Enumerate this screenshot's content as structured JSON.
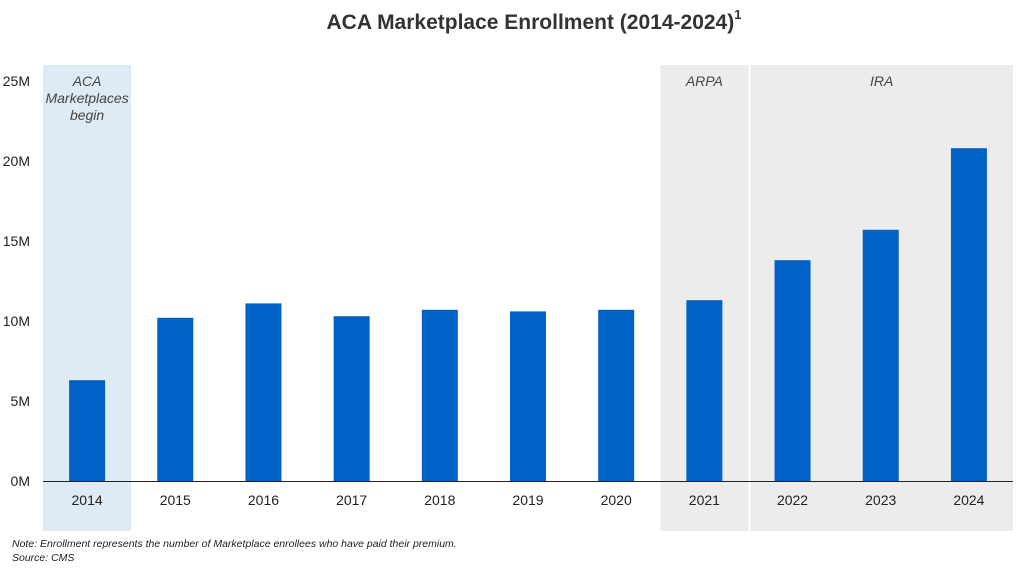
{
  "title": {
    "text": "ACA Marketplace Enrollment (2014-2024)",
    "footnote_marker": "1"
  },
  "notes": {
    "note": "Note: Enrollment represents the number of Marketplace enrollees who have paid their premium.",
    "source": "Source: CMS"
  },
  "colors": {
    "bar": "#0061c7",
    "band_aca": "#deebf5",
    "band_grey": "#ececec",
    "axis": "#222222"
  },
  "chart_data": {
    "type": "bar",
    "title": "ACA Marketplace Enrollment (2014-2024)",
    "categories": [
      "2014",
      "2015",
      "2016",
      "2017",
      "2018",
      "2019",
      "2020",
      "2021",
      "2022",
      "2023",
      "2024"
    ],
    "values": [
      6.3,
      10.2,
      11.1,
      10.3,
      10.7,
      10.6,
      10.7,
      11.3,
      13.8,
      15.7,
      20.8
    ],
    "unit": "M",
    "xlabel": "",
    "ylabel": "",
    "ylim": [
      0,
      25
    ],
    "yticks": [
      0,
      5,
      10,
      15,
      20,
      25
    ],
    "ytick_labels": [
      "0M",
      "5M",
      "10M",
      "15M",
      "20M",
      "25M"
    ],
    "bands": [
      {
        "name": "aca-marketplaces-begin",
        "start": "2014",
        "end": "2014",
        "label": [
          "ACA",
          "Marketplaces",
          "begin"
        ],
        "style": "aca"
      },
      {
        "name": "arpa",
        "start": "2021",
        "end": "2021",
        "label": [
          "ARPA"
        ],
        "style": "grey"
      },
      {
        "name": "ira",
        "start": "2022",
        "end": "2024",
        "label": [
          "IRA"
        ],
        "style": "grey"
      }
    ]
  }
}
